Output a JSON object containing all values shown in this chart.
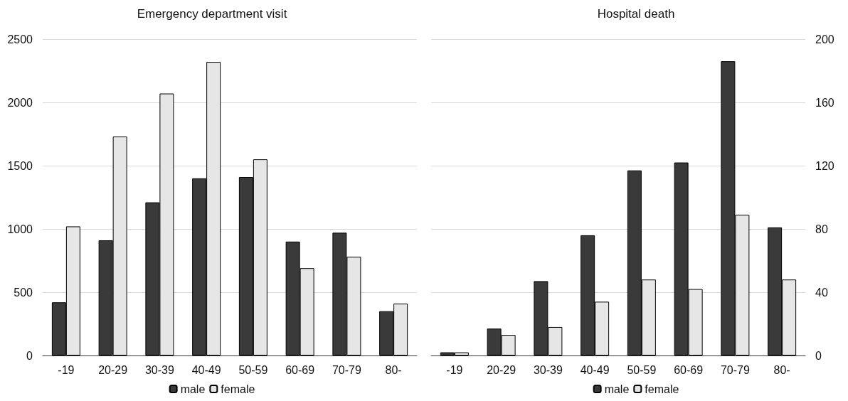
{
  "chart_data": [
    {
      "type": "bar",
      "title": "Emergency department visit",
      "categories": [
        "-19",
        "20-29",
        "30-39",
        "40-49",
        "50-59",
        "60-69",
        "70-79",
        "80-"
      ],
      "series": [
        {
          "name": "male",
          "color": "#3a3a3a",
          "values": [
            420,
            910,
            1210,
            1400,
            1410,
            900,
            970,
            350
          ]
        },
        {
          "name": "female",
          "color": "#e6e6e6",
          "values": [
            1020,
            1730,
            2070,
            2320,
            1550,
            690,
            780,
            410
          ]
        }
      ],
      "ylim": [
        0,
        2500
      ],
      "yticks": [
        0,
        500,
        1000,
        1500,
        2000,
        2500
      ],
      "grid": "y",
      "legend": "bottom"
    },
    {
      "type": "bar",
      "title": "Hospital death",
      "categories": [
        "-19",
        "20-29",
        "30-39",
        "40-49",
        "50-59",
        "60-69",
        "70-79",
        "80-"
      ],
      "series": [
        {
          "name": "male",
          "color": "#3a3a3a",
          "values": [
            2,
            17,
            47,
            76,
            117,
            122,
            186,
            81
          ]
        },
        {
          "name": "female",
          "color": "#e6e6e6",
          "values": [
            2,
            13,
            18,
            34,
            48,
            42,
            89,
            48
          ]
        }
      ],
      "ylim": [
        0,
        200
      ],
      "yticks": [
        0,
        40,
        80,
        120,
        160,
        200
      ],
      "grid": "y",
      "legend": "bottom"
    }
  ]
}
